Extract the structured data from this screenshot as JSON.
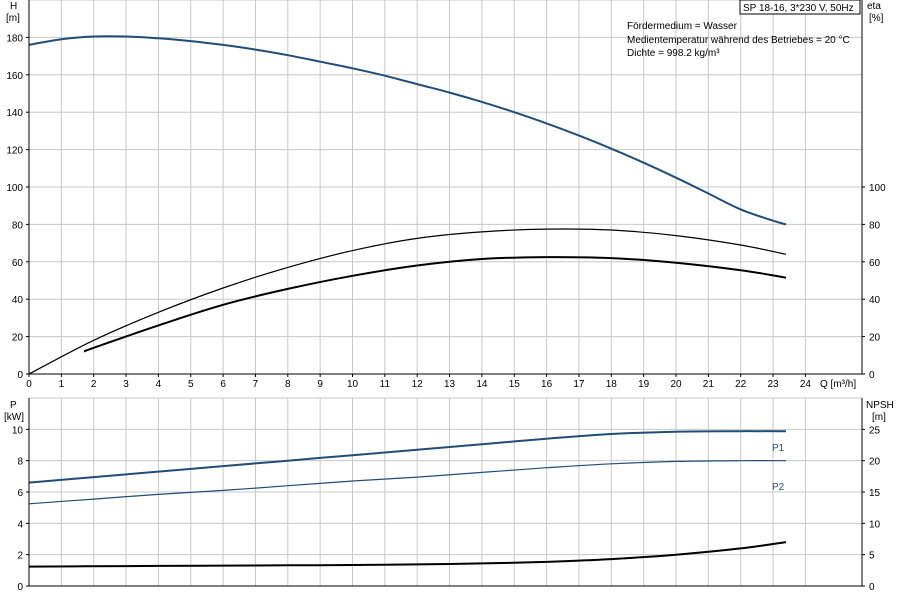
{
  "chart_data": [
    {
      "type": "line",
      "title": "SP 18-16, 3*230 V, 50Hz",
      "info_lines": [
        "Fördermedium = Wasser",
        "Medientemperatur während des Betriebes = 20 °C",
        "Dichte = 998.2 kg/m³"
      ],
      "ylabel": "H",
      "yunit": "[m]",
      "y2label": "eta",
      "y2unit": "[%]",
      "xlabel": "Q [m³/h]",
      "xlim": [
        0,
        25
      ],
      "ylim": [
        0,
        200
      ],
      "y2lim": [
        0,
        200
      ],
      "xticks": [
        0,
        1,
        2,
        3,
        4,
        5,
        6,
        7,
        8,
        9,
        10,
        11,
        12,
        13,
        14,
        15,
        16,
        17,
        18,
        19,
        20,
        21,
        22,
        23,
        24
      ],
      "yticks": [
        0,
        20,
        40,
        60,
        80,
        100,
        120,
        140,
        160,
        180
      ],
      "y2ticks": [
        0,
        20,
        40,
        60,
        80,
        100
      ],
      "grid": true,
      "series": [
        {
          "axis": "left",
          "color": "#1f4e79",
          "x": [
            0,
            1,
            2,
            3,
            4,
            5,
            6,
            7,
            8,
            9,
            10,
            11,
            12,
            13,
            14,
            15,
            16,
            17,
            18,
            19,
            20,
            21,
            22,
            23,
            23.4
          ],
          "values": [
            176,
            179,
            180.5,
            180.5,
            179.5,
            178,
            176,
            173.5,
            170.5,
            167,
            163.5,
            159.5,
            155,
            150.5,
            145.5,
            140,
            134,
            127.5,
            120.5,
            113,
            105,
            96.5,
            88,
            82,
            80
          ]
        },
        {
          "axis": "right",
          "color": "#000000",
          "x": [
            0,
            2,
            4,
            6,
            8,
            10,
            12,
            14,
            16,
            18,
            20,
            22,
            23.4
          ],
          "values": [
            0,
            18,
            33,
            46,
            57,
            66,
            72.5,
            76,
            77.5,
            77,
            74,
            69,
            64
          ]
        },
        {
          "axis": "right",
          "color": "#000000",
          "x": [
            1.7,
            2,
            4,
            6,
            8,
            10,
            12,
            14,
            16,
            18,
            20,
            22,
            23.4
          ],
          "values": [
            12,
            14,
            26,
            37,
            45.5,
            52.5,
            58,
            61.5,
            62.5,
            62,
            59.5,
            55.5,
            51.5
          ]
        }
      ]
    },
    {
      "type": "line",
      "ylabel": "P",
      "yunit": "[kW]",
      "y2label": "NPSH",
      "y2unit": "[m]",
      "xlim": [
        0,
        25
      ],
      "ylim": [
        0,
        12
      ],
      "y2lim": [
        0,
        30
      ],
      "yticks": [
        0,
        2,
        4,
        6,
        8,
        10
      ],
      "y2ticks": [
        0,
        5,
        10,
        15,
        20,
        25
      ],
      "grid": true,
      "series": [
        {
          "name": "P1",
          "axis": "left",
          "color": "#1f4e79",
          "x": [
            0,
            2,
            4,
            6,
            8,
            10,
            12,
            14,
            16,
            18,
            20,
            22,
            23.4
          ],
          "values": [
            6.6,
            6.95,
            7.3,
            7.65,
            8.0,
            8.35,
            8.7,
            9.05,
            9.4,
            9.7,
            9.85,
            9.88,
            9.88
          ]
        },
        {
          "name": "P2",
          "axis": "left",
          "color": "#1f4e79",
          "x": [
            0,
            2,
            4,
            6,
            8,
            10,
            12,
            14,
            16,
            18,
            20,
            22,
            23.4
          ],
          "values": [
            5.25,
            5.55,
            5.85,
            6.1,
            6.4,
            6.7,
            6.95,
            7.25,
            7.55,
            7.8,
            7.95,
            8.0,
            8.0
          ]
        },
        {
          "axis": "right",
          "color": "#000000",
          "x": [
            0,
            1.7,
            4,
            6,
            8,
            10,
            12,
            14,
            16,
            18,
            20,
            22,
            23.4
          ],
          "values": [
            3.1,
            3.15,
            3.2,
            3.25,
            3.3,
            3.35,
            3.45,
            3.6,
            3.85,
            4.3,
            5.0,
            6.0,
            7.0
          ]
        }
      ]
    }
  ]
}
